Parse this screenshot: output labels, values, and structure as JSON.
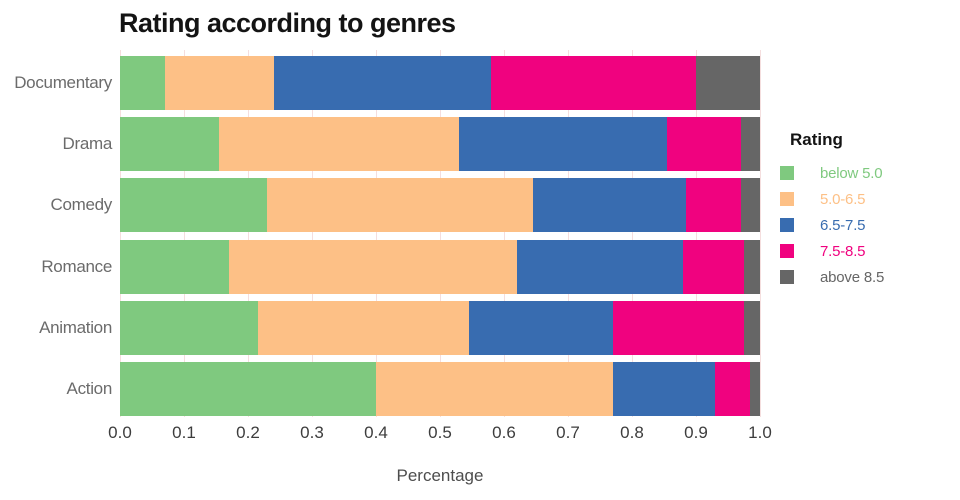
{
  "chart": {
    "title": "Rating according to genres",
    "xlabel": "Percentage"
  },
  "legend": {
    "title": "Rating",
    "items": [
      {
        "label": "below 5.0",
        "color": "#7fc97f"
      },
      {
        "label": "5.0-6.5",
        "color": "#fdc086"
      },
      {
        "label": "6.5-7.5",
        "color": "#386cb0"
      },
      {
        "label": "7.5-8.5",
        "color": "#f0027f"
      },
      {
        "label": "above 8.5",
        "color": "#666666"
      }
    ]
  },
  "chart_data": {
    "type": "bar",
    "orientation": "horizontal",
    "stacked": true,
    "title": "Rating according to genres",
    "xlabel": "Percentage",
    "ylabel": "",
    "xlim": [
      0.0,
      1.0
    ],
    "x_ticks": [
      "0.0",
      "0.1",
      "0.2",
      "0.3",
      "0.4",
      "0.5",
      "0.6",
      "0.7",
      "0.8",
      "0.9",
      "1.0"
    ],
    "grid": "vertical light-pink gridlines at each 0.1",
    "legend_position": "right",
    "categories": [
      "Documentary",
      "Drama",
      "Comedy",
      "Romance",
      "Animation",
      "Action"
    ],
    "series": [
      {
        "name": "below 5.0",
        "color": "#7fc97f",
        "values": [
          0.07,
          0.155,
          0.23,
          0.17,
          0.215,
          0.4
        ]
      },
      {
        "name": "5.0-6.5",
        "color": "#fdc086",
        "values": [
          0.17,
          0.375,
          0.415,
          0.45,
          0.33,
          0.37
        ]
      },
      {
        "name": "6.5-7.5",
        "color": "#386cb0",
        "values": [
          0.34,
          0.325,
          0.24,
          0.26,
          0.225,
          0.16
        ]
      },
      {
        "name": "7.5-8.5",
        "color": "#f0027f",
        "values": [
          0.32,
          0.115,
          0.085,
          0.095,
          0.205,
          0.055
        ]
      },
      {
        "name": "above 8.5",
        "color": "#666666",
        "values": [
          0.1,
          0.03,
          0.03,
          0.025,
          0.025,
          0.015
        ]
      }
    ]
  }
}
